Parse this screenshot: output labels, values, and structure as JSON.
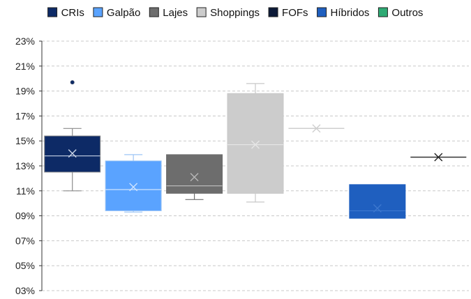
{
  "chart_data": {
    "type": "box",
    "title": "",
    "xlabel": "",
    "ylabel": "",
    "ylim": [
      3,
      23
    ],
    "y_ticks": [
      3,
      5,
      7,
      9,
      11,
      13,
      15,
      17,
      19,
      21,
      23
    ],
    "y_tick_labels": [
      "03%",
      "05%",
      "07%",
      "09%",
      "11%",
      "13%",
      "15%",
      "17%",
      "19%",
      "21%",
      "23%"
    ],
    "grid": true,
    "legend_position": "top",
    "series": [
      {
        "name": "CRIs",
        "color": "#0d2a66",
        "whisker_color": "#8c8c8c",
        "median_color": "#c9d3e6",
        "min": 11.0,
        "q1": 12.5,
        "median": 13.8,
        "mean": 14.0,
        "q3": 15.4,
        "max": 16.0,
        "outliers": [
          19.7
        ]
      },
      {
        "name": "Galpão",
        "color": "#5aa3ff",
        "whisker_color": "#9ec6f5",
        "median_color": "#cfe4ff",
        "min": 9.3,
        "q1": 9.4,
        "median": 11.1,
        "mean": 11.3,
        "q3": 13.4,
        "max": 13.9,
        "outliers": []
      },
      {
        "name": "Lajes",
        "color": "#6d6d6d",
        "whisker_color": "#6d6d6d",
        "median_color": "#b8b8b8",
        "min": 10.3,
        "q1": 10.8,
        "median": 11.4,
        "mean": 12.1,
        "q3": 13.9,
        "max": 13.9,
        "outliers": []
      },
      {
        "name": "Shoppings",
        "color": "#cccccc",
        "whisker_color": "#c8c8c8",
        "median_color": "#e6e6e6",
        "min": 10.1,
        "q1": 10.8,
        "median": 14.7,
        "mean": 14.7,
        "q3": 18.8,
        "max": 19.6,
        "outliers": []
      },
      {
        "name": "FOFs",
        "color": "#0c1a38",
        "whisker_color": "#cfcfcf",
        "median_color": "#cfcfcf",
        "min": 16.0,
        "q1": 16.0,
        "median": 16.0,
        "mean": 16.0,
        "q3": 16.0,
        "max": 16.0,
        "outliers": []
      },
      {
        "name": "Híbridos",
        "color": "#1f5fbf",
        "whisker_color": "#1f5fbf",
        "median_color": "#3d78cf",
        "min": 8.8,
        "q1": 8.8,
        "median": 9.4,
        "mean": 9.6,
        "q3": 11.5,
        "max": 11.5,
        "outliers": []
      },
      {
        "name": "Outros",
        "color": "#2eaa74",
        "whisker_color": "#333333",
        "median_color": "#333333",
        "min": 13.7,
        "q1": 13.7,
        "median": 13.7,
        "mean": 13.7,
        "q3": 13.7,
        "max": 13.7,
        "outliers": []
      }
    ]
  }
}
